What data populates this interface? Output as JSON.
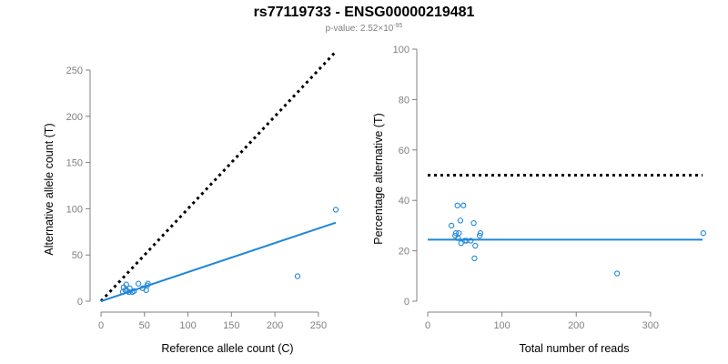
{
  "title": "rs77119733 - ENSG00000219481",
  "subtitle": {
    "prefix": "p-value: 2.52×10",
    "exponent": "-95"
  },
  "colors": {
    "accent": "#1f86d8",
    "axis": "#808080",
    "reference_line": "#000000"
  },
  "chart_data": [
    {
      "type": "scatter",
      "xlabel": "Reference allele count (C)",
      "ylabel": "Alternative allele count (T)",
      "xlim": [
        0,
        270
      ],
      "ylim": [
        0,
        250
      ],
      "xticks": [
        0,
        50,
        100,
        150,
        200,
        250
      ],
      "yticks": [
        0,
        50,
        100,
        150,
        200,
        250
      ],
      "points": [
        [
          25,
          10
        ],
        [
          26,
          15
        ],
        [
          28,
          12
        ],
        [
          29,
          18
        ],
        [
          30,
          11
        ],
        [
          32,
          10
        ],
        [
          33,
          14
        ],
        [
          36,
          10
        ],
        [
          38,
          11
        ],
        [
          43,
          19
        ],
        [
          48,
          14
        ],
        [
          52,
          12
        ],
        [
          53,
          17
        ],
        [
          54,
          19
        ],
        [
          226,
          27
        ],
        [
          270,
          99
        ]
      ],
      "reference_line": {
        "style": "dotted",
        "from": [
          0,
          0
        ],
        "to": [
          270,
          270
        ]
      },
      "fit_line": {
        "style": "solid",
        "from": [
          0,
          0
        ],
        "to": [
          270,
          85
        ]
      },
      "grid": false
    },
    {
      "type": "scatter",
      "xlabel": "Total number of reads",
      "ylabel": "Percentage alternative (T)",
      "xlim": [
        0,
        370
      ],
      "ylim": [
        0,
        100
      ],
      "xticks": [
        0,
        100,
        200,
        300
      ],
      "yticks": [
        0,
        20,
        40,
        60,
        80,
        100
      ],
      "points": [
        [
          32,
          30
        ],
        [
          37,
          26
        ],
        [
          38,
          27
        ],
        [
          40,
          38
        ],
        [
          41,
          25
        ],
        [
          42,
          27
        ],
        [
          44,
          32
        ],
        [
          45,
          23
        ],
        [
          48,
          38
        ],
        [
          50,
          24
        ],
        [
          52,
          24
        ],
        [
          58,
          24
        ],
        [
          62,
          31
        ],
        [
          63,
          17
        ],
        [
          64,
          22
        ],
        [
          70,
          26
        ],
        [
          71,
          27
        ],
        [
          255,
          11
        ],
        [
          371,
          27
        ]
      ],
      "reference_line": {
        "style": "dotted",
        "y": 50,
        "from_x": 0,
        "to_x": 370
      },
      "fit_line": {
        "style": "solid",
        "y": 24.4,
        "from_x": 0,
        "to_x": 370
      },
      "grid": false
    }
  ]
}
